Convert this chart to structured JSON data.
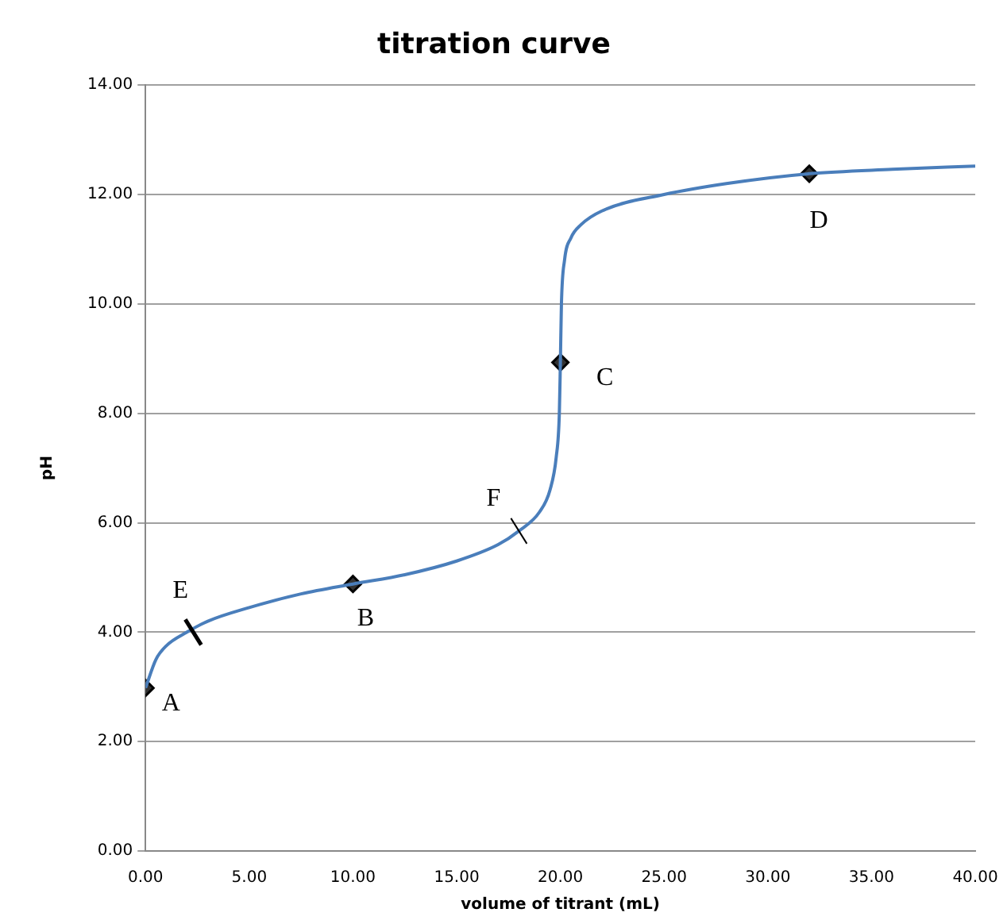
{
  "chart_data": {
    "type": "line",
    "title": "titration curve",
    "xlabel": "volume of titrant (mL)",
    "ylabel": "pH",
    "xlim": [
      0,
      40
    ],
    "xticks": [
      {
        "value": 0,
        "label": "0.00"
      },
      {
        "value": 5,
        "label": "5.00"
      },
      {
        "value": 10,
        "label": "10.00"
      },
      {
        "value": 15,
        "label": "15.00"
      },
      {
        "value": 20,
        "label": "20.00"
      },
      {
        "value": 25,
        "label": "25.00"
      },
      {
        "value": 30,
        "label": "30.00"
      },
      {
        "value": 35,
        "label": "35.00"
      },
      {
        "value": 40,
        "label": "40.00"
      }
    ],
    "ylim": [
      0,
      14
    ],
    "yticks": [
      {
        "value": 0,
        "label": "0.00"
      },
      {
        "value": 2,
        "label": "2.00"
      },
      {
        "value": 4,
        "label": "4.00"
      },
      {
        "value": 6,
        "label": "6.00"
      },
      {
        "value": 8,
        "label": "8.00"
      },
      {
        "value": 10,
        "label": "10.00"
      },
      {
        "value": 12,
        "label": "12.00"
      },
      {
        "value": 14,
        "label": "14.00"
      }
    ],
    "grid": "y",
    "legend": false,
    "series": [
      {
        "type": "line",
        "color": "#4a7ebb",
        "marker": "none",
        "x": [
          0,
          0.5,
          1,
          2,
          3,
          5,
          7.5,
          10,
          12.5,
          15,
          17,
          18,
          19,
          19.5,
          19.8,
          19.95,
          20,
          20.05,
          20.2,
          20.5,
          21,
          22,
          25,
          28,
          32,
          36,
          40
        ],
        "values": [
          2.98,
          3.5,
          3.75,
          4.0,
          4.2,
          4.45,
          4.7,
          4.88,
          5.05,
          5.3,
          5.6,
          5.85,
          6.2,
          6.6,
          7.2,
          8.0,
          8.93,
          10.0,
          10.8,
          11.2,
          11.45,
          11.7,
          12.0,
          12.2,
          12.38,
          12.46,
          12.52
        ]
      },
      {
        "type": "scatter",
        "color": "#000000",
        "marker": "diamond",
        "x": [
          0,
          10,
          20,
          32
        ],
        "values": [
          2.98,
          4.88,
          8.93,
          12.38
        ]
      }
    ],
    "annotations": [
      {
        "text": "A",
        "x": 0,
        "y": 2.98
      },
      {
        "text": "B",
        "x": 10,
        "y": 4.88
      },
      {
        "text": "C",
        "x": 20,
        "y": 8.93
      },
      {
        "text": "D",
        "x": 32,
        "y": 12.38
      },
      {
        "text": "E",
        "x": 2.3,
        "y": 4.0
      },
      {
        "text": "F",
        "x": 18,
        "y": 5.85
      }
    ]
  }
}
